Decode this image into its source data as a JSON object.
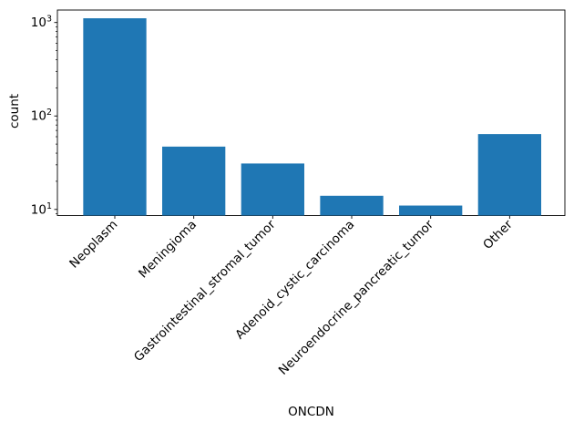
{
  "figure": {
    "background": "#ffffff"
  },
  "chart_data": {
    "type": "bar",
    "categories": [
      "Neoplasm",
      "Meningioma",
      "Gastrointestinal_stromal_tumor",
      "Adenoid_cystic_carcinoma",
      "Neuroendocrine_pancreatic_tumor",
      "Other"
    ],
    "values": [
      1110,
      47,
      31,
      14,
      11,
      64
    ],
    "title": "",
    "xlabel": "ONCDN",
    "ylabel": "count",
    "yscale": "log",
    "ylim": [
      8.6,
      1360
    ],
    "yticks": [
      10,
      100,
      1000
    ],
    "xtick_rotation": 45,
    "bar_color": "#1f77b4",
    "axis_color": "#000000",
    "grid": false,
    "legend": null
  }
}
